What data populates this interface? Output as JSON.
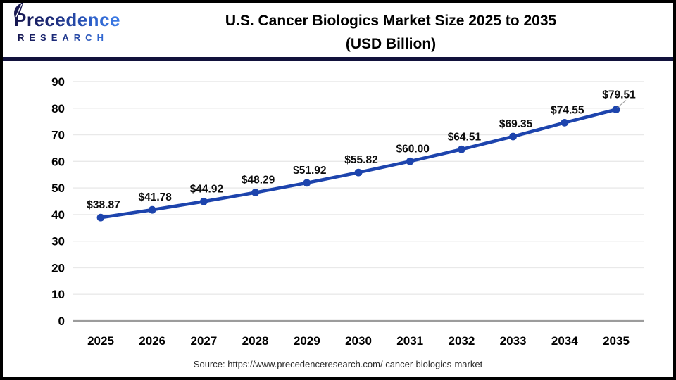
{
  "header": {
    "logo": {
      "brand": "Precedence",
      "subtitle": "RESEARCH"
    },
    "title_line1": "U.S. Cancer Biologics Market Size 2025 to 2035",
    "title_line2": "(USD Billion)"
  },
  "chart_data": {
    "type": "line",
    "title": "U.S. Cancer Biologics Market Size 2025 to 2035 (USD Billion)",
    "categories": [
      "2025",
      "2026",
      "2027",
      "2028",
      "2029",
      "2030",
      "2031",
      "2032",
      "2033",
      "2034",
      "2035"
    ],
    "values": [
      38.87,
      41.78,
      44.92,
      48.29,
      51.92,
      55.82,
      60.0,
      64.51,
      69.35,
      74.55,
      79.51
    ],
    "labels": [
      "$38.87",
      "$41.78",
      "$44.92",
      "$48.29",
      "$51.92",
      "$55.82",
      "$60.00",
      "$64.51",
      "$69.35",
      "$74.55",
      "$79.51"
    ],
    "xlabel": "",
    "ylabel": "",
    "ylim": [
      0,
      90
    ],
    "ytick_step": 10,
    "yticks": [
      0,
      10,
      20,
      30,
      40,
      50,
      60,
      70,
      80,
      90
    ],
    "grid": "horizontal",
    "legend": "none",
    "marker": "circle",
    "value_prefix": "$"
  },
  "footer": {
    "source": "Source: https://www.precedenceresearch.com/ cancer-biologics-market"
  },
  "colors": {
    "line": "#1d44ad",
    "divider": "#12123c",
    "grid": "#e9e9e9",
    "axis_zero": "#9c9c9c",
    "leader": "#999999",
    "title": "#000000",
    "data_label": "#0d0d0d",
    "source_text": "#2b2b2b",
    "background": "#ffffff",
    "frame_border": "#000000",
    "logo_navy": "#16164e",
    "logo_blue": "#3d7de8"
  }
}
